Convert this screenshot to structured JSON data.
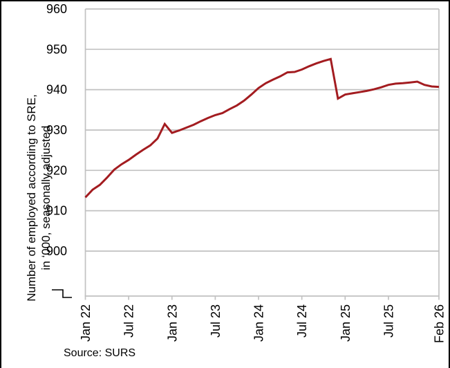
{
  "chart_data": {
    "type": "line",
    "title": "",
    "ylabel_lines": [
      "Number of employed according to SRE,",
      "in ‘000, seasonally adjusted"
    ],
    "source": "Source: SURS",
    "x_tick_labels": [
      "Jan 22",
      "Jul 22",
      "Jan 23",
      "Jul 23",
      "Jan 24",
      "Jul 24",
      "Jan 25",
      "Jul 25",
      "Feb 26"
    ],
    "y_tick_labels": [
      "960",
      "950",
      "940",
      "930",
      "920",
      "910",
      "900"
    ],
    "axis_break": true,
    "grid_on": true,
    "legend": "none",
    "line_color": "#A31C20",
    "grid_color": "#C1C1C1",
    "x": [
      "Jan 22",
      "Feb 22",
      "Mar 22",
      "Apr 22",
      "May 22",
      "Jun 22",
      "Jul 22",
      "Aug 22",
      "Sep 22",
      "Oct 22",
      "Nov 22",
      "Dec 22",
      "Jan 23",
      "Feb 23",
      "Mar 23",
      "Apr 23",
      "May 23",
      "Jun 23",
      "Jul 23",
      "Aug 23",
      "Sep 23",
      "Oct 23",
      "Nov 23",
      "Dec 23",
      "Jan 24",
      "Feb 24",
      "Mar 24",
      "Apr 24",
      "May 24",
      "Jun 24",
      "Jul 24",
      "Aug 24",
      "Sep 24",
      "Oct 24",
      "Nov 24",
      "Dec 24",
      "Jan 25",
      "Feb 25",
      "Mar 25",
      "Apr 25",
      "May 25",
      "Jun 25",
      "Jul 25",
      "Aug 25",
      "Sep 25",
      "Oct 25",
      "Nov 25",
      "Dec 25",
      "Jan 26",
      "Feb 26"
    ],
    "series": [
      {
        "name": "Number of employed according to SRE, in '000, seasonally adjusted",
        "color": "#A31C20",
        "values": [
          913.3,
          915.2,
          916.4,
          918.2,
          920.2,
          921.5,
          922.6,
          923.9,
          925.1,
          926.2,
          927.9,
          931.5,
          929.3,
          929.9,
          930.6,
          931.3,
          932.2,
          933.0,
          933.7,
          934.2,
          935.2,
          936.1,
          937.3,
          938.8,
          940.4,
          941.6,
          942.5,
          943.3,
          944.3,
          944.4,
          945.0,
          945.8,
          946.5,
          947.1,
          947.6,
          937.8,
          938.8,
          939.1,
          939.4,
          939.7,
          940.1,
          940.6,
          941.2,
          941.5,
          941.6,
          941.8,
          942.0,
          941.2,
          940.8,
          940.7
        ]
      }
    ],
    "ylim_shown": [
      900,
      960
    ]
  }
}
